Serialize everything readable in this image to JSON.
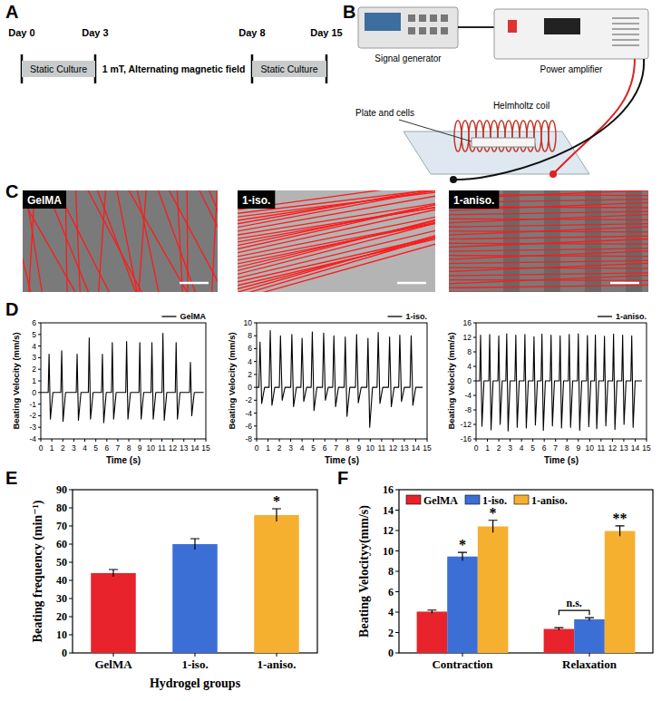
{
  "panel_labels": [
    "A",
    "B",
    "C",
    "D",
    "E",
    "F"
  ],
  "timeline": {
    "days": [
      "Day 0",
      "Day 3",
      "Day 8",
      "Day 15"
    ],
    "phases": [
      "Static Culture",
      "1 mT, Alternating magnetic field",
      "Static Culture"
    ]
  },
  "setup": {
    "devices": [
      "Signal generator",
      "Power amplifier",
      "Helmholtz coil",
      "Plate and cells"
    ]
  },
  "images": {
    "labels": [
      "GelMA",
      "1-iso.",
      "1-aniso."
    ]
  },
  "chart_data": [
    {
      "type": "line",
      "x_label": "Time (s)",
      "y_label": "Beating Velocity (mm/s)",
      "x": [
        0,
        0.67,
        0.75,
        0.87,
        1.1,
        1.82,
        1.9,
        2.02,
        2.25,
        3.22,
        3.3,
        3.42,
        3.65,
        4.32,
        4.4,
        4.52,
        4.75,
        5.52,
        5.6,
        5.72,
        5.95,
        6.42,
        6.5,
        6.62,
        6.85,
        7.72,
        7.8,
        7.92,
        8.15,
        8.92,
        9.0,
        9.12,
        9.35,
        10.02,
        10.1,
        10.22,
        10.45,
        11.02,
        11.1,
        11.22,
        11.45,
        12.22,
        12.3,
        12.42,
        12.65,
        13.52,
        13.6,
        13.72,
        13.95,
        14.8
      ],
      "series": [
        {
          "name": "GelMA",
          "color": "#000000",
          "values": [
            0,
            0,
            3.3,
            -2.3,
            0,
            0,
            3.6,
            -2.5,
            0,
            0,
            3.3,
            -2.4,
            0,
            0,
            4.7,
            -2.3,
            0,
            0,
            3.3,
            -2.6,
            0,
            0,
            4.3,
            -2.3,
            0,
            0,
            4.4,
            -2.3,
            0,
            0,
            4.3,
            -2.3,
            0,
            0,
            4.3,
            -2.3,
            0,
            0,
            5.1,
            -2.4,
            0,
            0,
            4.3,
            -2.3,
            0,
            0,
            2.6,
            -2.0,
            0,
            0
          ]
        }
      ],
      "xlim": [
        0,
        15
      ],
      "xticks": [
        0,
        1,
        2,
        3,
        4,
        5,
        6,
        7,
        8,
        9,
        10,
        11,
        12,
        13,
        14,
        15
      ],
      "ylim": [
        -4,
        6
      ],
      "yticks": [
        -4,
        -3,
        -2,
        -1,
        0,
        1,
        2,
        3,
        4,
        5,
        6
      ],
      "legend": "upper right"
    },
    {
      "type": "line",
      "x_label": "Time (s)",
      "y_label": "Beating Velocity (mm/s)",
      "x": [
        0,
        0.2,
        0.3,
        0.45,
        0.7,
        1.1,
        1.2,
        1.35,
        1.6,
        2.0,
        2.1,
        2.25,
        2.5,
        3.0,
        3.1,
        3.25,
        3.5,
        3.9,
        4.0,
        4.15,
        4.4,
        4.8,
        4.9,
        5.05,
        5.3,
        5.8,
        5.9,
        6.05,
        6.3,
        6.7,
        6.8,
        6.95,
        7.2,
        7.7,
        7.8,
        7.95,
        8.2,
        8.7,
        8.8,
        8.95,
        9.2,
        9.7,
        9.8,
        9.95,
        10.2,
        10.6,
        10.7,
        10.85,
        11.1,
        11.6,
        11.7,
        11.85,
        12.1,
        12.5,
        12.6,
        12.75,
        13.0,
        13.5,
        13.6,
        13.75,
        14.0,
        14.6
      ],
      "series": [
        {
          "name": "1-iso.",
          "color": "#000000",
          "values": [
            0,
            0,
            7.0,
            -2.5,
            0,
            0,
            8.8,
            -2.8,
            0,
            0,
            8.0,
            -2.0,
            0,
            0,
            8.2,
            -3.0,
            0,
            0,
            7.6,
            -2.2,
            0,
            0,
            8.6,
            -3.6,
            0,
            0,
            8.4,
            -2.0,
            0,
            0,
            8.0,
            -3.0,
            0,
            0,
            7.8,
            -4.5,
            0,
            0,
            8.2,
            -2.4,
            0,
            0,
            7.6,
            -6.2,
            0,
            0,
            8.5,
            -2.5,
            0,
            0,
            7.8,
            -3.0,
            0,
            0,
            8.1,
            -2.2,
            0,
            0,
            8.0,
            -2.8,
            0,
            0
          ]
        }
      ],
      "xlim": [
        0,
        15
      ],
      "xticks": [
        0,
        1,
        2,
        3,
        4,
        5,
        6,
        7,
        8,
        9,
        10,
        11,
        12,
        13,
        14,
        15
      ],
      "ylim": [
        -8,
        10
      ],
      "yticks": [
        -8,
        -6,
        -4,
        -2,
        0,
        2,
        4,
        6,
        8,
        10
      ],
      "legend": "upper right"
    },
    {
      "type": "line",
      "x_label": "Time (s)",
      "y_label": "Beating Velocity (mm/s)",
      "x": [
        0,
        0.32,
        0.4,
        0.52,
        0.7,
        1.12,
        1.2,
        1.32,
        1.5,
        1.92,
        2.0,
        2.12,
        2.3,
        2.62,
        2.7,
        2.82,
        3.0,
        3.42,
        3.5,
        3.62,
        3.8,
        4.22,
        4.3,
        4.42,
        4.6,
        5.02,
        5.1,
        5.22,
        5.4,
        5.72,
        5.8,
        5.92,
        6.1,
        6.52,
        6.6,
        6.72,
        6.9,
        7.32,
        7.4,
        7.52,
        7.7,
        8.12,
        8.2,
        8.32,
        8.5,
        8.92,
        9.0,
        9.12,
        9.3,
        9.72,
        9.8,
        9.92,
        10.1,
        10.42,
        10.5,
        10.62,
        10.8,
        11.22,
        11.3,
        11.42,
        11.6,
        12.02,
        12.1,
        12.22,
        12.4,
        12.82,
        12.9,
        13.02,
        13.2,
        13.62,
        13.7,
        13.82,
        14.0,
        14.6
      ],
      "series": [
        {
          "name": "1-aniso.",
          "color": "#000000",
          "values": [
            0,
            0,
            12.6,
            -12.5,
            0,
            0,
            12.8,
            -13.5,
            0,
            0,
            12.4,
            -12.0,
            0,
            0,
            13.0,
            -13.8,
            0,
            0,
            12.6,
            -12.8,
            0,
            0,
            12.8,
            -13.0,
            0,
            0,
            12.2,
            -12.2,
            0,
            0,
            12.9,
            -13.6,
            0,
            0,
            12.6,
            -12.4,
            0,
            0,
            12.4,
            -13.0,
            0,
            0,
            12.8,
            -12.8,
            0,
            0,
            13.0,
            -13.6,
            0,
            0,
            12.5,
            -12.6,
            0,
            0,
            12.7,
            -13.2,
            0,
            0,
            12.3,
            -12.4,
            0,
            0,
            12.9,
            -13.4,
            0,
            0,
            12.6,
            -12.0,
            0,
            0,
            12.4,
            -12.8,
            0,
            0
          ]
        }
      ],
      "xlim": [
        0,
        15
      ],
      "xticks": [
        0,
        1,
        2,
        3,
        4,
        5,
        6,
        7,
        8,
        9,
        10,
        11,
        12,
        13,
        14,
        15
      ],
      "ylim": [
        -16,
        16
      ],
      "yticks": [
        -16,
        -12,
        -8,
        -4,
        0,
        4,
        8,
        12,
        16
      ],
      "legend": "upper right"
    },
    {
      "type": "bar",
      "x_label": "Hydrogel groups",
      "y_label": "Beating frequency (min⁻¹)",
      "categories": [
        "GelMA",
        "1-iso.",
        "1-aniso."
      ],
      "values": [
        44,
        60,
        76
      ],
      "errors": [
        2,
        3,
        3.5
      ],
      "significance": [
        null,
        null,
        "*"
      ],
      "colors": [
        "#e8232b",
        "#3b6fd6",
        "#f6b02f"
      ],
      "ylim": [
        0,
        90
      ],
      "yticks": [
        0,
        10,
        20,
        30,
        40,
        50,
        60,
        70,
        80,
        90
      ]
    },
    {
      "type": "bar",
      "y_label": "Beating Velocityy(mm/s)",
      "categories": [
        "Contraction",
        "Relaxation"
      ],
      "series": [
        {
          "name": "GelMA",
          "color": "#e8232b",
          "values": [
            4.05,
            2.35
          ],
          "errors": [
            0.15,
            0.12
          ],
          "significance": [
            null,
            null
          ]
        },
        {
          "name": "1-iso.",
          "color": "#3b6fd6",
          "values": [
            9.45,
            3.3
          ],
          "errors": [
            0.4,
            0.15
          ],
          "significance": [
            "*",
            null
          ]
        },
        {
          "name": "1-aniso.",
          "color": "#f6b02f",
          "values": [
            12.4,
            11.95
          ],
          "errors": [
            0.6,
            0.5
          ],
          "significance": [
            "*",
            "**"
          ]
        }
      ],
      "annotations": [
        {
          "text": "n.s.",
          "between": [
            "GelMA",
            "1-iso."
          ],
          "category": "Relaxation"
        }
      ],
      "ylim": [
        0,
        16
      ],
      "yticks": [
        0,
        2,
        4,
        6,
        8,
        10,
        12,
        14,
        16
      ],
      "legend": "upper left"
    }
  ]
}
